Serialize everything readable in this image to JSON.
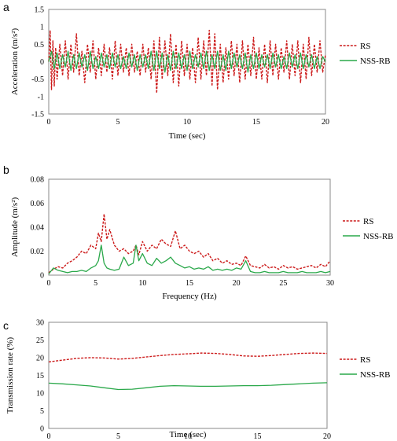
{
  "colors": {
    "rs": "#cc1a1a",
    "nss_rb": "#2aa84a",
    "axis": "#888888"
  },
  "chart_data": [
    {
      "panel": "a",
      "type": "line",
      "xlabel": "Time (sec)",
      "ylabel": "Acceleration (m/s²)",
      "xlim": [
        0,
        20
      ],
      "ylim": [
        -1.5,
        1.5
      ],
      "xticks": [
        0,
        5,
        10,
        15,
        20
      ],
      "yticks": [
        -1.5,
        -1,
        -0.5,
        0,
        0.5,
        1,
        1.5
      ],
      "grid": false,
      "legend": "right",
      "series": [
        {
          "name": "RS",
          "style": "dashed",
          "x": [
            0,
            0.1,
            0.2,
            0.3,
            0.4,
            0.5,
            0.6,
            0.8,
            1.0,
            1.2,
            1.4,
            1.6,
            1.8,
            2.0,
            2.2,
            2.4,
            2.6,
            2.8,
            3.0,
            3.2,
            3.4,
            3.6,
            3.8,
            4.0,
            4.2,
            4.4,
            4.6,
            4.8,
            5.0,
            5.2,
            5.4,
            5.6,
            5.8,
            6.0,
            6.2,
            6.4,
            6.6,
            6.8,
            7.0,
            7.2,
            7.4,
            7.6,
            7.8,
            8.0,
            8.2,
            8.4,
            8.6,
            8.8,
            9.0,
            9.2,
            9.4,
            9.6,
            9.8,
            10.0,
            10.2,
            10.4,
            10.6,
            10.8,
            11.0,
            11.2,
            11.4,
            11.6,
            11.8,
            12.0,
            12.2,
            12.4,
            12.6,
            12.8,
            13.0,
            13.2,
            13.4,
            13.6,
            13.8,
            14.0,
            14.2,
            14.4,
            14.6,
            14.8,
            15.0,
            15.2,
            15.4,
            15.6,
            15.8,
            16.0,
            16.2,
            16.4,
            16.6,
            16.8,
            17.0,
            17.2,
            17.4,
            17.6,
            17.8,
            18.0,
            18.2,
            18.4,
            18.6,
            18.8,
            19.0,
            19.2,
            19.4,
            19.6,
            19.8,
            20.0
          ],
          "values": [
            0,
            0.9,
            -0.8,
            0.6,
            -0.7,
            0.4,
            -0.5,
            0.5,
            -0.4,
            0.6,
            -0.5,
            0.5,
            -0.3,
            0.8,
            -0.4,
            0.3,
            -0.6,
            0.5,
            -0.3,
            0.6,
            -0.5,
            0.4,
            -0.4,
            0.5,
            -0.3,
            0.4,
            -0.5,
            0.6,
            -0.4,
            0.5,
            -0.3,
            0.4,
            -0.4,
            0.5,
            -0.3,
            0.3,
            -0.4,
            0.5,
            -0.3,
            0.4,
            -0.5,
            0.6,
            -0.9,
            0.7,
            -0.5,
            0.6,
            -0.4,
            0.8,
            -0.6,
            0.5,
            -0.7,
            0.6,
            -0.4,
            0.5,
            -0.5,
            0.4,
            -0.6,
            0.7,
            -0.5,
            0.6,
            -0.4,
            0.9,
            -0.7,
            0.8,
            -0.8,
            0.5,
            -0.6,
            0.4,
            -0.5,
            0.6,
            -0.4,
            0.5,
            -0.6,
            0.6,
            -0.5,
            0.5,
            -0.4,
            0.7,
            -0.5,
            0.4,
            -0.5,
            0.5,
            -0.6,
            0.6,
            -0.4,
            0.5,
            -0.5,
            0.4,
            -0.3,
            0.6,
            -0.5,
            0.5,
            -0.4,
            0.6,
            -0.6,
            0.5,
            -0.5,
            0.7,
            -0.4,
            0.5,
            -0.3,
            0.6,
            -0.3,
            0.2
          ]
        },
        {
          "name": "NSS-RB",
          "style": "solid",
          "x": [
            0,
            0.2,
            0.4,
            0.6,
            0.8,
            1.0,
            1.2,
            1.4,
            1.6,
            1.8,
            2.0,
            2.2,
            2.4,
            2.6,
            2.8,
            3.0,
            3.2,
            3.4,
            3.6,
            3.8,
            4.0,
            4.2,
            4.4,
            4.6,
            4.8,
            5.0,
            5.2,
            5.4,
            5.6,
            5.8,
            6.0,
            6.2,
            6.4,
            6.6,
            6.8,
            7.0,
            7.2,
            7.4,
            7.6,
            7.8,
            8.0,
            8.2,
            8.4,
            8.6,
            8.8,
            9.0,
            9.2,
            9.4,
            9.6,
            9.8,
            10.0,
            10.2,
            10.4,
            10.6,
            10.8,
            11.0,
            11.2,
            11.4,
            11.6,
            11.8,
            12.0,
            12.2,
            12.4,
            12.6,
            12.8,
            13.0,
            13.2,
            13.4,
            13.6,
            13.8,
            14.0,
            14.2,
            14.4,
            14.6,
            14.8,
            15.0,
            15.2,
            15.4,
            15.6,
            15.8,
            16.0,
            16.2,
            16.4,
            16.6,
            16.8,
            17.0,
            17.2,
            17.4,
            17.6,
            17.8,
            18.0,
            18.2,
            18.4,
            18.6,
            18.8,
            19.0,
            19.2,
            19.4,
            19.6,
            19.8,
            20.0
          ],
          "values": [
            0,
            0.3,
            -0.2,
            0.25,
            -0.2,
            0.2,
            -0.15,
            0.3,
            -0.25,
            0.2,
            -0.2,
            0.25,
            -0.15,
            0.2,
            -0.25,
            0.3,
            -0.2,
            0.15,
            -0.2,
            0.25,
            -0.15,
            0.2,
            -0.2,
            0.25,
            -0.15,
            0.2,
            -0.2,
            0.15,
            -0.2,
            0.25,
            -0.15,
            0.2,
            -0.25,
            0.2,
            -0.15,
            0.2,
            -0.2,
            0.3,
            -0.25,
            0.3,
            -0.2,
            0.25,
            -0.3,
            0.2,
            -0.25,
            0.3,
            -0.2,
            0.25,
            -0.2,
            0.2,
            -0.25,
            0.3,
            -0.2,
            0.2,
            -0.15,
            0.25,
            -0.2,
            0.3,
            -0.25,
            0.2,
            -0.2,
            0.3,
            -0.25,
            0.2,
            -0.25,
            0.3,
            -0.2,
            0.25,
            -0.15,
            0.2,
            -0.2,
            0.25,
            -0.3,
            0.2,
            -0.2,
            0.25,
            -0.2,
            0.2,
            -0.15,
            0.2,
            -0.2,
            0.25,
            -0.15,
            0.2,
            -0.2,
            0.15,
            -0.2,
            0.25,
            -0.15,
            0.2,
            -0.2,
            0.25,
            -0.2,
            0.2,
            -0.15,
            0.2,
            -0.2,
            0.15,
            -0.2,
            0.15,
            0
          ]
        }
      ]
    },
    {
      "panel": "b",
      "type": "line",
      "xlabel": "Frequency (Hz)",
      "ylabel": "Amplitude (m/s²)",
      "xlim": [
        0,
        30
      ],
      "ylim": [
        0,
        0.08
      ],
      "xticks": [
        0,
        5,
        10,
        15,
        20,
        25,
        30
      ],
      "yticks": [
        0,
        0.02,
        0.04,
        0.06,
        0.08
      ],
      "grid": false,
      "legend": "right",
      "series": [
        {
          "name": "RS",
          "style": "dashed",
          "x": [
            0,
            0.5,
            1,
            1.5,
            2,
            2.5,
            3,
            3.5,
            4,
            4.5,
            5,
            5.3,
            5.6,
            5.9,
            6.2,
            6.5,
            7,
            7.5,
            8,
            8.5,
            9,
            9.3,
            9.6,
            10,
            10.5,
            11,
            11.5,
            12,
            12.5,
            13,
            13.5,
            14,
            14.5,
            15,
            15.5,
            16,
            16.5,
            17,
            17.5,
            18,
            18.5,
            19,
            19.5,
            20,
            20.5,
            21,
            21.5,
            22,
            22.5,
            23,
            23.5,
            24,
            24.5,
            25,
            25.5,
            26,
            26.5,
            27,
            27.5,
            28,
            28.5,
            29,
            29.5,
            30
          ],
          "values": [
            0.002,
            0.005,
            0.007,
            0.006,
            0.01,
            0.012,
            0.015,
            0.02,
            0.018,
            0.025,
            0.022,
            0.035,
            0.028,
            0.051,
            0.03,
            0.038,
            0.025,
            0.02,
            0.022,
            0.018,
            0.02,
            0.025,
            0.017,
            0.028,
            0.02,
            0.025,
            0.022,
            0.03,
            0.026,
            0.024,
            0.037,
            0.022,
            0.025,
            0.02,
            0.018,
            0.02,
            0.015,
            0.018,
            0.012,
            0.014,
            0.01,
            0.012,
            0.009,
            0.01,
            0.008,
            0.016,
            0.008,
            0.007,
            0.006,
            0.009,
            0.006,
            0.007,
            0.005,
            0.008,
            0.006,
            0.007,
            0.005,
            0.006,
            0.007,
            0.008,
            0.006,
            0.009,
            0.007,
            0.012
          ]
        },
        {
          "name": "NSS-RB",
          "style": "solid",
          "x": [
            0,
            0.5,
            1,
            1.5,
            2,
            2.5,
            3,
            3.5,
            4,
            4.5,
            5,
            5.3,
            5.6,
            5.9,
            6.2,
            6.5,
            7,
            7.5,
            8,
            8.5,
            9,
            9.3,
            9.6,
            10,
            10.5,
            11,
            11.5,
            12,
            12.5,
            13,
            13.5,
            14,
            14.5,
            15,
            15.5,
            16,
            16.5,
            17,
            17.5,
            18,
            18.5,
            19,
            19.5,
            20,
            20.5,
            21,
            21.5,
            22,
            22.5,
            23,
            23.5,
            24,
            24.5,
            25,
            25.5,
            26,
            26.5,
            27,
            27.5,
            28,
            28.5,
            29,
            29.5,
            30
          ],
          "values": [
            0.001,
            0.006,
            0.004,
            0.003,
            0.002,
            0.003,
            0.003,
            0.004,
            0.003,
            0.006,
            0.008,
            0.012,
            0.025,
            0.01,
            0.006,
            0.005,
            0.004,
            0.005,
            0.015,
            0.008,
            0.01,
            0.025,
            0.012,
            0.018,
            0.01,
            0.008,
            0.014,
            0.01,
            0.012,
            0.015,
            0.01,
            0.008,
            0.006,
            0.007,
            0.005,
            0.006,
            0.005,
            0.007,
            0.004,
            0.005,
            0.004,
            0.005,
            0.004,
            0.006,
            0.005,
            0.012,
            0.003,
            0.002,
            0.002,
            0.003,
            0.002,
            0.002,
            0.002,
            0.003,
            0.002,
            0.002,
            0.002,
            0.003,
            0.002,
            0.002,
            0.002,
            0.003,
            0.002,
            0.003
          ]
        }
      ]
    },
    {
      "panel": "c",
      "type": "line",
      "xlabel": "Time (sec)",
      "ylabel": "Transmission rate (%)",
      "xlim": [
        0,
        20
      ],
      "ylim": [
        0,
        30
      ],
      "xticks": [
        0,
        5,
        10,
        15,
        20
      ],
      "yticks": [
        0,
        5,
        10,
        15,
        20,
        25,
        30
      ],
      "grid": false,
      "legend": "right",
      "series": [
        {
          "name": "RS",
          "style": "dashed",
          "x": [
            0,
            1,
            2,
            3,
            4,
            5,
            6,
            7,
            8,
            9,
            10,
            11,
            12,
            13,
            14,
            15,
            16,
            17,
            18,
            19,
            20
          ],
          "values": [
            18.8,
            19.3,
            19.8,
            20.0,
            19.9,
            19.6,
            19.8,
            20.2,
            20.6,
            20.9,
            21.1,
            21.3,
            21.2,
            20.9,
            20.5,
            20.4,
            20.6,
            20.9,
            21.2,
            21.3,
            21.2
          ]
        },
        {
          "name": "NSS-RB",
          "style": "solid",
          "x": [
            0,
            1,
            2,
            3,
            4,
            5,
            6,
            7,
            8,
            9,
            10,
            11,
            12,
            13,
            14,
            15,
            16,
            17,
            18,
            19,
            20
          ],
          "values": [
            12.8,
            12.6,
            12.3,
            12.0,
            11.5,
            11.0,
            11.1,
            11.5,
            11.9,
            12.1,
            12.0,
            11.9,
            11.9,
            12.0,
            12.1,
            12.1,
            12.2,
            12.4,
            12.6,
            12.8,
            12.9
          ]
        }
      ]
    }
  ]
}
